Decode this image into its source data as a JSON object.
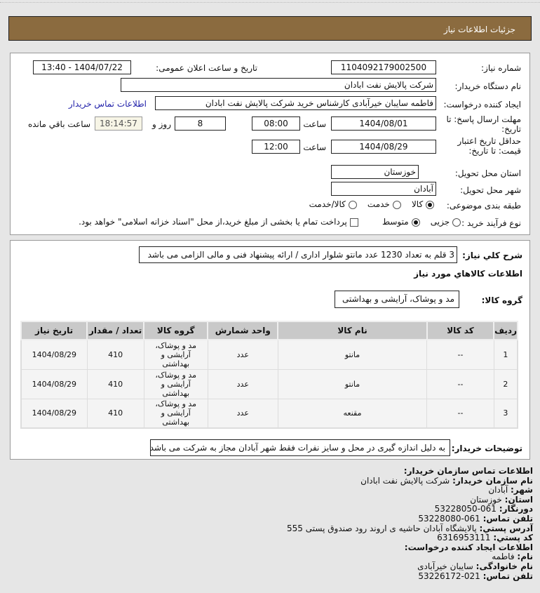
{
  "header": {
    "title": "جزئیات اطلاعات نیاز"
  },
  "form": {
    "need_number_label": "شماره نیاز:",
    "need_number": "1104092179002500",
    "announce_label": "تاریخ و ساعت اعلان عمومی:",
    "announce_value": "1404/07/22 - 13:40",
    "buyer_org_label": "نام دستگاه خریدار:",
    "buyer_org": "شرکت پالایش نفت ابادان",
    "creator_label": "ایجاد کننده درخواست:",
    "creator": "فاطمه سایبان خیرآبادی کارشناس خرید شرکت پالایش نفت ابادان",
    "contact_link": "اطلاعات تماس خریدار",
    "deadline_label": "مهلت ارسال پاسخ: تا تاریخ:",
    "deadline_date": "1404/08/01",
    "time_label": "ساعت",
    "deadline_time": "08:00",
    "days": "8",
    "days_label": "روز و",
    "remaining": "18:14:57",
    "remaining_label": "ساعت باقي مانده",
    "validity_label": "حداقل تاریخ اعتبار قیمت: تا تاریخ:",
    "validity_date": "1404/08/29",
    "validity_time": "12:00",
    "province_label": "استان محل تحویل:",
    "province": "خوزستان",
    "city_label": "شهر محل تحویل:",
    "city": "آبادان",
    "category_label": "طبقه بندی موضوعی:",
    "category_options": [
      {
        "label": "کالا",
        "selected": true
      },
      {
        "label": "خدمت",
        "selected": false
      },
      {
        "label": "کالا/خدمت",
        "selected": false
      }
    ],
    "process_label": "نوع فرآیند خرید :",
    "process_options": [
      {
        "label": "جزیی",
        "selected": false
      },
      {
        "label": "متوسط",
        "selected": true
      }
    ],
    "payment_note": "پرداخت تمام یا بخشی از مبلغ خرید،از محل \"اسناد خزانه اسلامی\" خواهد بود.",
    "payment_checked": false
  },
  "details": {
    "summary_label": "شرح کلي نیاز:",
    "summary": "3 قلم به تعداد 1230 عدد مانتو شلوار اداری / ارائه پیشنهاد فنی و مالی الزامی می باشد",
    "goods_title": "اطلاعات کالاهاي مورد نیاز",
    "group_label": "گروه کالا:",
    "group": "مد و پوشاک، آرایشی و بهداشتی",
    "table": {
      "headers": [
        "ردیف",
        "کد کالا",
        "نام کالا",
        "واحد شمارش",
        "گروه کالا",
        "تعداد / مقدار",
        "تاریخ نیاز"
      ],
      "rows": [
        [
          "1",
          "--",
          "مانتو",
          "عدد",
          "مد و پوشاک، آرایشی و بهداشتی",
          "410",
          "1404/08/29"
        ],
        [
          "2",
          "--",
          "مانتو",
          "عدد",
          "مد و پوشاک، آرایشی و بهداشتی",
          "410",
          "1404/08/29"
        ],
        [
          "3",
          "--",
          "مقنعه",
          "عدد",
          "مد و پوشاک، آرایشی و بهداشتی",
          "410",
          "1404/08/29"
        ]
      ]
    },
    "buyer_notes_label": "توضیحات خریدار:",
    "buyer_notes": "به دلیل اندازه گیری در محل و سایز نفرات فقط شهر آبادان مجاز به شرکت می باشد"
  },
  "contact": {
    "title": "اطلاعات تماس سازمان خریدار:",
    "items": [
      {
        "k": "نام سازمان خریدار:",
        "v": "شرکت پالایش نفت ابادان"
      },
      {
        "k": "شهر:",
        "v": "آبادان"
      },
      {
        "k": "استان:",
        "v": "خوزستان"
      },
      {
        "k": "دورنگار:",
        "v": "061-53228050"
      },
      {
        "k": "تلفن تماس:",
        "v": "061-53228080"
      },
      {
        "k": "آدرس پستي:",
        "v": "پالایشگاه آبادان حاشیه ی اروند رود صندوق پستی 555"
      },
      {
        "k": "کد پستي:",
        "v": "6316953111"
      }
    ],
    "creator_title": "اطلاعات ایجاد کننده درخواست:",
    "creator_items": [
      {
        "k": "نام:",
        "v": "فاطمه"
      },
      {
        "k": "نام خانوادگی:",
        "v": "سایبان خیرآبادی"
      },
      {
        "k": "تلفن تماس:",
        "v": "021-53226172"
      }
    ]
  }
}
